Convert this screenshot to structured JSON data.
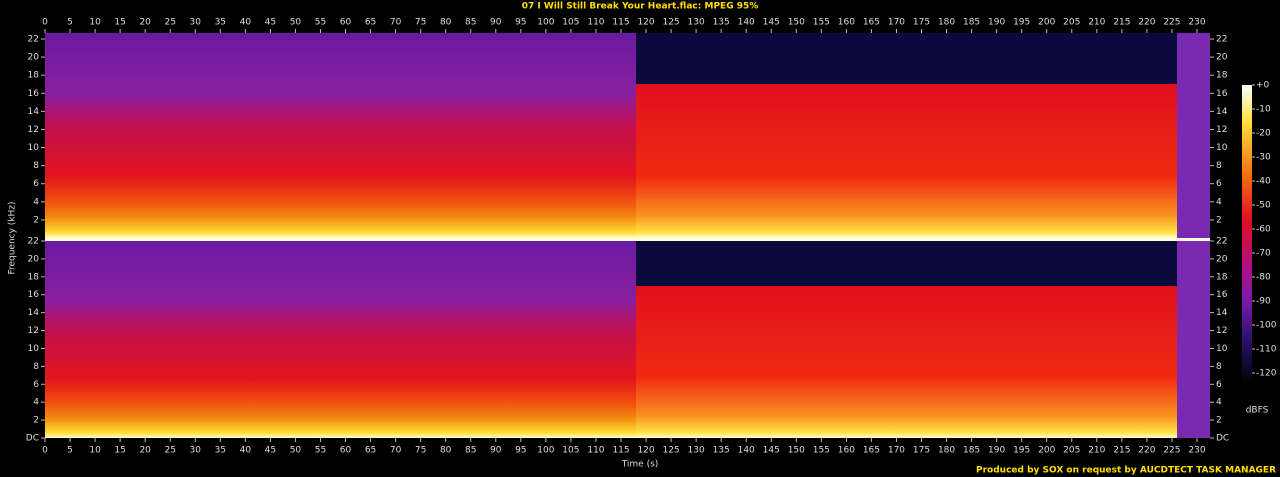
{
  "chart_data": {
    "type": "spectrogram",
    "title": "07 I Will Still Break Your Heart.flac: MPEG 95%",
    "xlabel": "Time (s)",
    "ylabel": "Frequency (kHz)",
    "xlim": [
      0,
      232.6
    ],
    "xticks": [
      0,
      5,
      10,
      15,
      20,
      25,
      30,
      35,
      40,
      45,
      50,
      55,
      60,
      65,
      70,
      75,
      80,
      85,
      90,
      95,
      100,
      105,
      110,
      115,
      120,
      125,
      130,
      135,
      140,
      145,
      150,
      155,
      160,
      165,
      170,
      175,
      180,
      185,
      190,
      195,
      200,
      205,
      210,
      215,
      220,
      225,
      230
    ],
    "ylim": [
      0,
      22
    ],
    "yticks": [
      {
        "value": 0,
        "label": "DC"
      },
      2,
      4,
      6,
      8,
      10,
      12,
      14,
      16,
      18,
      20,
      22
    ],
    "colorbar_label": "dBFS",
    "zlim": [
      -125,
      0
    ],
    "zticks": [
      {
        "value": 0,
        "label": "+0"
      },
      -10,
      -20,
      -30,
      -40,
      -50,
      -60,
      -70,
      -80,
      -90,
      -100,
      -110,
      -120
    ],
    "footer": "Produced by SOX on request by AUCDTECT TASK MANAGER"
  }
}
